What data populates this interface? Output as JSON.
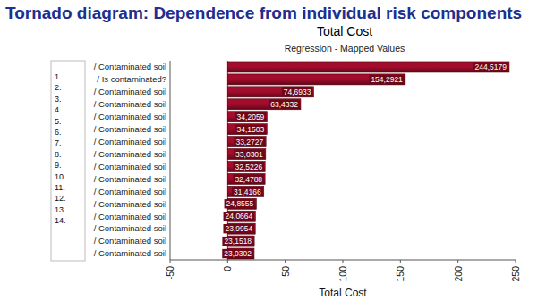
{
  "chart_data": {
    "type": "bar",
    "orientation": "horizontal",
    "title": "Tornado diagram: Dependence from individual risk components",
    "chart_title": "Total Cost",
    "subtitle": "Regression - Mapped Values",
    "x_label": "Total Cost",
    "categories": [
      "/ Contaminated soil",
      "/ Is contaminated?",
      "/ Contaminated soil",
      "/ Contaminated soil",
      "/ Contaminated soil",
      "/ Contaminated soil",
      "/ Contaminated soil",
      "/ Contaminated soil",
      "/ Contaminated soil",
      "/ Contaminated soil",
      "/ Contaminated soil",
      "/ Contaminated soil",
      "/ Contaminated soil",
      "/ Contaminated soil",
      "/ Contaminated soil",
      "/ Contaminated soil"
    ],
    "values": [
      244.5179,
      154.2921,
      74.6933,
      63.4332,
      34.2059,
      34.1503,
      33.2727,
      33.0301,
      32.5226,
      32.4788,
      31.4166,
      24.8555,
      24.0664,
      23.9954,
      23.1518,
      23.0302
    ],
    "value_labels": [
      "244,5179",
      "154,2921",
      "74,6933",
      "63,4332",
      "34,2059",
      "34,1503",
      "33,2727",
      "33,0301",
      "32,5226",
      "32,4788",
      "31,4166",
      "24,8555",
      "24,0664",
      "23,9954",
      "23,1518",
      "23,0302"
    ],
    "data_labels": true,
    "color": "#a30c2c",
    "xlim": [
      -50,
      250
    ],
    "xticks": [
      -50,
      0,
      50,
      100,
      150,
      200,
      250
    ],
    "grid": false,
    "annotations": [
      "1.",
      "2.",
      "3.",
      "4.",
      "5.",
      "6.",
      "7.",
      "8.",
      "9.",
      "10.",
      "11.",
      "12.",
      "13.",
      "14."
    ]
  }
}
